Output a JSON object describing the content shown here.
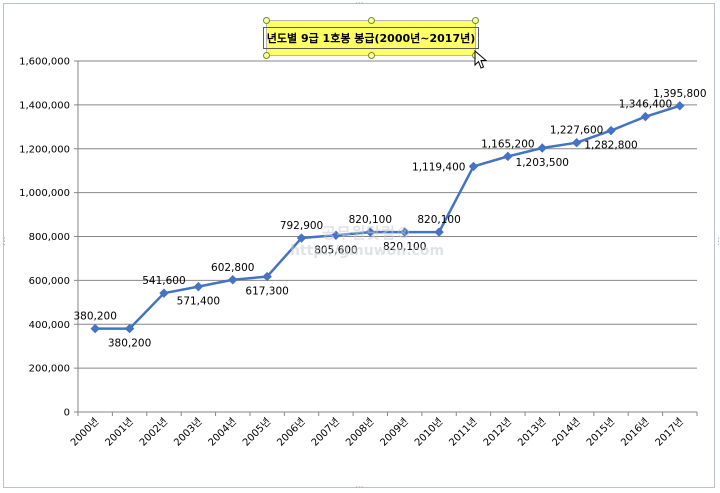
{
  "chart_data": {
    "type": "line",
    "title": "년도별 9급 1호봉 봉급(2000년~2017년)",
    "categories": [
      "2000년",
      "2001년",
      "2002년",
      "2003년",
      "2004년",
      "2005년",
      "2006년",
      "2007년",
      "2008년",
      "2009년",
      "2010년",
      "2011년",
      "2012년",
      "2013년",
      "2014년",
      "2015년",
      "2016년",
      "2017년"
    ],
    "values": [
      380200,
      380200,
      541600,
      571400,
      602800,
      617300,
      792900,
      805600,
      820100,
      820100,
      820100,
      1119400,
      1165200,
      1203500,
      1227600,
      1282800,
      1346400,
      1395800
    ],
    "data_labels": [
      "380,200",
      "380,200",
      "541,600",
      "571,400",
      "602,800",
      "617,300",
      "792,900",
      "805,600",
      "820,100",
      "820,100",
      "820,100",
      "1,119,400",
      "1,165,200",
      "1,203,500",
      "1,227,600",
      "1,282,800",
      "1,346,400",
      "1,395,800"
    ],
    "label_positions": [
      "above",
      "below",
      "above",
      "below",
      "above",
      "below",
      "above",
      "below",
      "above",
      "below",
      "above",
      "left",
      "above",
      "below",
      "above",
      "below",
      "above",
      "above"
    ],
    "ylim": [
      0,
      1600000
    ],
    "ytick_values": [
      0,
      200000,
      400000,
      600000,
      800000,
      1000000,
      1200000,
      1400000,
      1600000
    ],
    "ytick_labels": [
      "0",
      "200,000",
      "400,000",
      "600,000",
      "800,000",
      "1,000,000",
      "1,200,000",
      "1,400,000",
      "1,600,000"
    ],
    "xlabel": "",
    "ylabel": "",
    "grid": true,
    "legend": "none",
    "line_color": "#4472c4",
    "title_background": "#ffff66"
  },
  "watermark": {
    "name": "공무원닷컴®",
    "url": "http://gmuwon.com"
  }
}
